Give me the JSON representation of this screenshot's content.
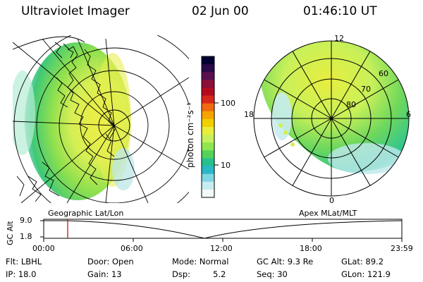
{
  "header": {
    "instrument": "Ultraviolet Imager",
    "date": "02 Jun 00",
    "time": "01:46:10 UT"
  },
  "colorbar": {
    "unit_label": "photon cm⁻²s⁻¹",
    "ticks": [
      "100",
      "10"
    ],
    "colors": [
      "#000033",
      "#2a0a4a",
      "#5a0f4f",
      "#8a0f3a",
      "#b30a1f",
      "#d7261a",
      "#f06a10",
      "#f7a400",
      "#f0d000",
      "#e9ee3a",
      "#c5f05b",
      "#8fe64e",
      "#53d35a",
      "#25c08d",
      "#2ab8c8",
      "#7fd6e3",
      "#c7ecef",
      "#f2fafa"
    ]
  },
  "geographic_panel": {
    "label": "Geographic Lat/Lon"
  },
  "polar_panel": {
    "label": "Apex MLat/MLT",
    "mlt_labels": [
      "12",
      "18",
      "6",
      "0"
    ],
    "lat_labels": [
      "60",
      "70",
      "80"
    ]
  },
  "timeline": {
    "axis_label": "GC Alt",
    "y_ticks": [
      "9.0",
      "1.8"
    ],
    "x_ticks": [
      "00:00",
      "06:00",
      "12:00",
      "18:00",
      "23:59"
    ],
    "marker_color": "#cc0000"
  },
  "status": {
    "filter": "Flt: LBHL",
    "door": "Door: Open",
    "mode": "Mode: Normal",
    "gc_alt": "GC Alt: 9.3 Re",
    "glat": "GLat: 89.2",
    "ip": "IP: 18.0",
    "gain": "Gain: 13",
    "dsp_label": "Dsp:",
    "dsp_value": "5.2",
    "seq": "Seq: 30",
    "glon": "GLon: 121.9"
  }
}
